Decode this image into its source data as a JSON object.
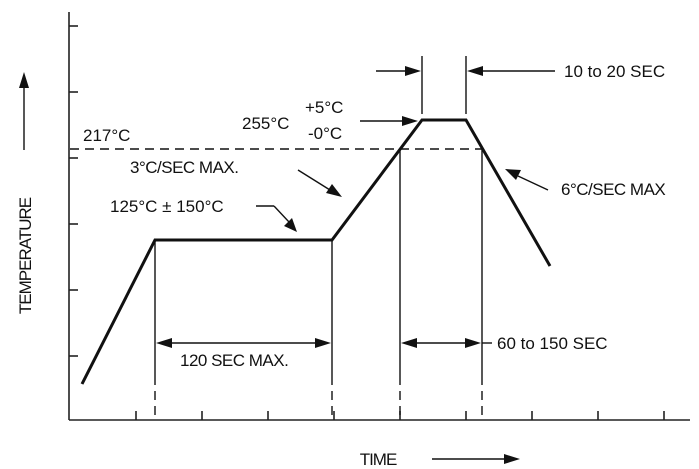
{
  "axes": {
    "ylabel": "TEMPERATURE",
    "xlabel": "TIME"
  },
  "labels": {
    "liquidus_temp": "217°C",
    "peak_temp": "255°C",
    "peak_tol_plus": "+5°C",
    "peak_tol_minus": "-0°C",
    "ramp_up_rate": "3°C/SEC  MAX.",
    "soak_temp": "125°C ± 150°C",
    "ramp_down_rate": "6°C/SEC  MAX",
    "peak_time": "10 to 20 SEC",
    "soak_time": "120 SEC MAX.",
    "liquidus_time": "60 to 150 SEC"
  }
}
